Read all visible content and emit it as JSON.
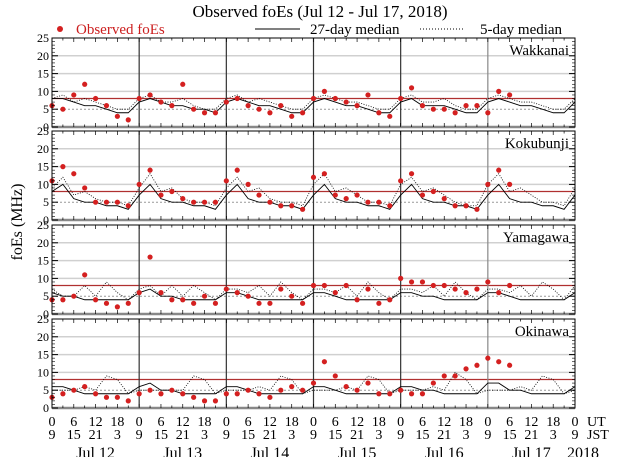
{
  "chart_data": {
    "type": "scatter",
    "title": "Observed foEs (Jul 12 - Jul 17, 2018)",
    "ylabel": "foEs (MHz)",
    "xlabel": "",
    "ylim": [
      0,
      25
    ],
    "yticks": [
      0,
      5,
      10,
      15,
      20,
      25
    ],
    "x_unit": "hours since Jul 12 00 UT",
    "xlim": [
      0,
      144
    ],
    "grid": true,
    "legend": {
      "placement": "top",
      "entries": [
        {
          "label": "Observed foEs",
          "style": "red-dot"
        },
        {
          "label": "27-day median",
          "style": "solid-black"
        },
        {
          "label": "5-day median",
          "style": "dotted-black"
        }
      ]
    },
    "reference_lines": {
      "red_line_MHz": 8,
      "dashed_gray_MHz": 5
    },
    "x_tick_rows": {
      "ut_label": "UT",
      "jst_label": "JST",
      "ut": [
        "0",
        "6",
        "12",
        "18",
        "0",
        "6",
        "12",
        "18",
        "0",
        "6",
        "12",
        "18",
        "0",
        "6",
        "12",
        "18",
        "0",
        "6",
        "12",
        "18",
        "0",
        "6",
        "12",
        "18",
        "0"
      ],
      "jst": [
        "9",
        "15",
        "21",
        "3",
        "9",
        "15",
        "21",
        "3",
        "9",
        "15",
        "21",
        "3",
        "9",
        "15",
        "21",
        "3",
        "9",
        "15",
        "21",
        "3",
        "9",
        "15",
        "21",
        "3",
        "9"
      ]
    },
    "day_labels": [
      "Jul 12",
      "Jul 13",
      "Jul 14",
      "Jul 15",
      "Jul 16",
      "Jul 17"
    ],
    "year_label": "2018",
    "observed_x_hours": [
      0,
      3,
      6,
      9,
      12,
      15,
      18,
      21,
      24,
      27,
      30,
      33,
      36,
      39,
      42,
      45,
      48,
      51,
      54,
      57,
      60,
      63,
      66,
      69,
      72,
      75,
      78,
      81,
      84,
      87,
      90,
      93,
      96,
      99,
      102,
      105,
      108,
      111,
      114,
      117,
      120,
      123,
      126
    ],
    "median_x_hours": [
      0,
      3,
      6,
      9,
      12,
      15,
      18,
      21,
      24,
      27,
      30,
      33,
      36,
      39,
      42,
      45,
      48,
      51,
      54,
      57,
      60,
      63,
      66,
      69,
      72,
      75,
      78,
      81,
      84,
      87,
      90,
      93,
      96,
      99,
      102,
      105,
      108,
      111,
      114,
      117,
      120,
      123,
      126,
      129,
      132,
      135,
      138,
      141,
      144
    ],
    "series": [
      {
        "station": "Wakkanai",
        "observed": [
          6,
          5,
          9,
          12,
          8,
          6,
          3,
          2,
          8,
          9,
          7,
          6,
          12,
          5,
          4,
          4,
          7,
          8,
          6,
          5,
          4,
          6,
          3,
          4,
          8,
          10,
          8,
          7,
          6,
          9,
          4,
          3,
          8,
          11,
          6,
          5,
          5,
          4,
          6,
          6,
          4,
          10,
          9
        ],
        "median_27day": [
          8,
          8,
          7,
          6,
          6,
          5,
          4,
          4,
          7,
          8,
          7,
          6,
          6,
          5,
          5,
          4,
          7,
          8,
          7,
          6,
          6,
          5,
          4,
          4,
          7,
          8,
          7,
          6,
          6,
          5,
          4,
          4,
          7,
          8,
          6,
          6,
          6,
          5,
          4,
          4,
          7,
          8,
          7,
          6,
          6,
          5,
          4,
          4,
          7
        ],
        "median_5day": [
          8,
          9,
          7,
          8,
          7,
          6,
          5,
          5,
          8,
          9,
          7,
          7,
          8,
          6,
          5,
          5,
          8,
          9,
          7,
          8,
          7,
          6,
          5,
          5,
          8,
          9,
          8,
          7,
          7,
          6,
          5,
          5,
          8,
          9,
          7,
          7,
          8,
          6,
          5,
          5,
          8,
          9,
          8,
          7,
          7,
          6,
          5,
          5,
          8
        ]
      },
      {
        "station": "Kokubunji",
        "observed": [
          11,
          15,
          13,
          9,
          5,
          5,
          5,
          4,
          10,
          14,
          7,
          8,
          6,
          5,
          5,
          5,
          11,
          14,
          10,
          7,
          5,
          4,
          4,
          3,
          12,
          13,
          7,
          6,
          7,
          5,
          5,
          4,
          11,
          13,
          7,
          8,
          6,
          4,
          4,
          3,
          10,
          14,
          10
        ],
        "median_27day": [
          8,
          10,
          6,
          5,
          5,
          4,
          4,
          3,
          7,
          10,
          6,
          5,
          5,
          4,
          4,
          3,
          7,
          10,
          6,
          5,
          5,
          4,
          4,
          3,
          7,
          10,
          6,
          5,
          5,
          4,
          4,
          3,
          7,
          10,
          6,
          5,
          5,
          4,
          4,
          3,
          7,
          10,
          6,
          5,
          5,
          4,
          4,
          3,
          7
        ],
        "median_5day": [
          9,
          12,
          7,
          8,
          6,
          5,
          5,
          4,
          9,
          13,
          8,
          9,
          6,
          5,
          5,
          4,
          9,
          12,
          8,
          9,
          6,
          5,
          5,
          4,
          10,
          13,
          8,
          9,
          7,
          5,
          5,
          4,
          10,
          12,
          8,
          9,
          7,
          5,
          4,
          4,
          10,
          13,
          8,
          9,
          7,
          5,
          5,
          4,
          9
        ]
      },
      {
        "station": "Yamagawa",
        "observed": [
          4,
          4,
          5,
          11,
          4,
          3,
          2,
          3,
          6,
          16,
          6,
          4,
          4,
          3,
          5,
          3,
          7,
          6,
          5,
          3,
          3,
          7,
          5,
          3,
          8,
          8,
          6,
          8,
          4,
          7,
          3,
          4,
          10,
          9,
          9,
          8,
          8,
          7,
          6,
          7,
          9,
          6,
          8
        ],
        "median_27day": [
          6,
          5,
          5,
          4,
          4,
          4,
          4,
          4,
          6,
          7,
          5,
          5,
          4,
          4,
          4,
          4,
          6,
          6,
          5,
          4,
          4,
          4,
          4,
          4,
          6,
          6,
          5,
          4,
          4,
          4,
          4,
          4,
          6,
          6,
          5,
          5,
          4,
          4,
          4,
          4,
          6,
          6,
          5,
          4,
          4,
          4,
          4,
          4,
          6
        ],
        "median_5day": [
          7,
          5,
          5,
          8,
          5,
          9,
          6,
          4,
          7,
          8,
          5,
          8,
          5,
          8,
          6,
          4,
          7,
          7,
          6,
          8,
          5,
          9,
          6,
          4,
          7,
          7,
          6,
          8,
          5,
          9,
          6,
          4,
          7,
          7,
          6,
          8,
          5,
          9,
          6,
          4,
          7,
          7,
          6,
          8,
          5,
          9,
          7,
          4,
          8
        ]
      },
      {
        "station": "Okinawa",
        "observed": [
          3,
          4,
          5,
          6,
          4,
          3,
          3,
          2,
          4,
          5,
          4,
          5,
          4,
          3,
          2,
          2,
          4,
          4,
          5,
          4,
          3,
          5,
          6,
          5,
          7,
          13,
          9,
          6,
          5,
          7,
          4,
          4,
          5,
          4,
          4,
          7,
          9,
          9,
          11,
          12,
          14,
          13,
          12
        ],
        "median_27day": [
          6,
          6,
          5,
          4,
          4,
          4,
          4,
          4,
          6,
          7,
          5,
          5,
          4,
          4,
          4,
          4,
          6,
          6,
          5,
          4,
          4,
          4,
          4,
          4,
          6,
          6,
          5,
          4,
          4,
          4,
          4,
          4,
          6,
          6,
          5,
          5,
          4,
          4,
          4,
          4,
          7,
          7,
          5,
          5,
          4,
          4,
          4,
          4,
          6
        ],
        "median_5day": [
          5,
          5,
          5,
          6,
          5,
          9,
          8,
          4,
          5,
          5,
          5,
          5,
          5,
          9,
          8,
          4,
          5,
          5,
          5,
          6,
          5,
          9,
          8,
          4,
          5,
          5,
          5,
          6,
          5,
          9,
          8,
          4,
          5,
          5,
          5,
          6,
          5,
          10,
          8,
          4,
          5,
          5,
          5,
          6,
          5,
          9,
          8,
          4,
          5
        ]
      }
    ]
  },
  "colors": {
    "observed": "#d42020",
    "median_27day": "#000000",
    "median_5day": "#000000",
    "red_reference": "#b03030",
    "grid": "#d0d0d0",
    "panel_border": "#000000"
  }
}
